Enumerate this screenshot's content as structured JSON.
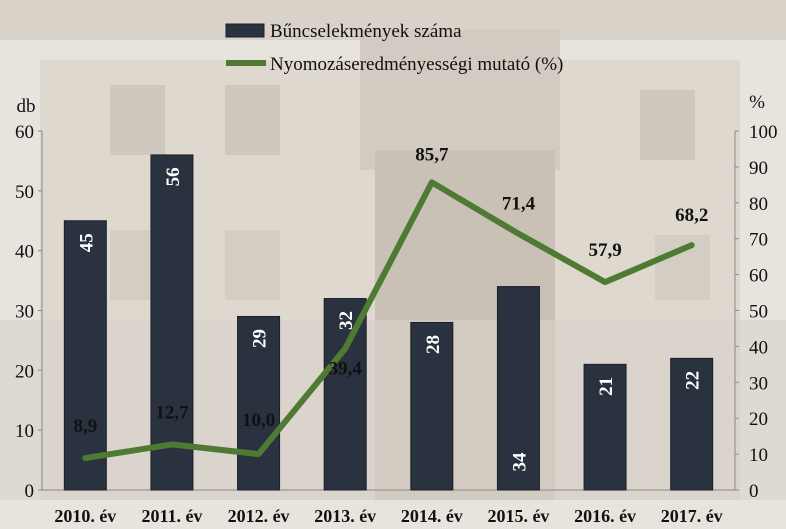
{
  "chart_data": {
    "type": "bar",
    "categories": [
      "2010. év",
      "2011. év",
      "2012. év",
      "2013. év",
      "2014. év",
      "2015. év",
      "2016. év",
      "2017. év"
    ],
    "series": [
      {
        "name": "Bűncselekmények száma",
        "type": "bar",
        "axis": "left",
        "values": [
          45,
          56,
          29,
          32,
          28,
          34,
          21,
          22
        ],
        "labels": [
          "45",
          "56",
          "29",
          "32",
          "28",
          "34",
          "21",
          "22"
        ],
        "color": "#2a3240"
      },
      {
        "name": "Nyomozáseredményességi mutató (%)",
        "type": "line",
        "axis": "right",
        "values": [
          8.9,
          12.7,
          10.0,
          39.4,
          85.7,
          71.4,
          57.9,
          68.2
        ],
        "labels": [
          "8,9",
          "12,7",
          "10,0",
          "39,4",
          "85,7",
          "71,4",
          "57,9",
          "68,2"
        ],
        "color": "#4e7a34"
      }
    ],
    "y_left": {
      "unit": "db",
      "range": [
        0,
        60
      ],
      "ticks": [
        "0",
        "10",
        "20",
        "30",
        "40",
        "50",
        "60"
      ]
    },
    "y_right": {
      "unit": "%",
      "range": [
        0,
        100
      ],
      "ticks": [
        "0",
        "10",
        "20",
        "30",
        "40",
        "50",
        "60",
        "70",
        "80",
        "90",
        "100"
      ]
    },
    "legend_position": "top",
    "grid": false
  }
}
